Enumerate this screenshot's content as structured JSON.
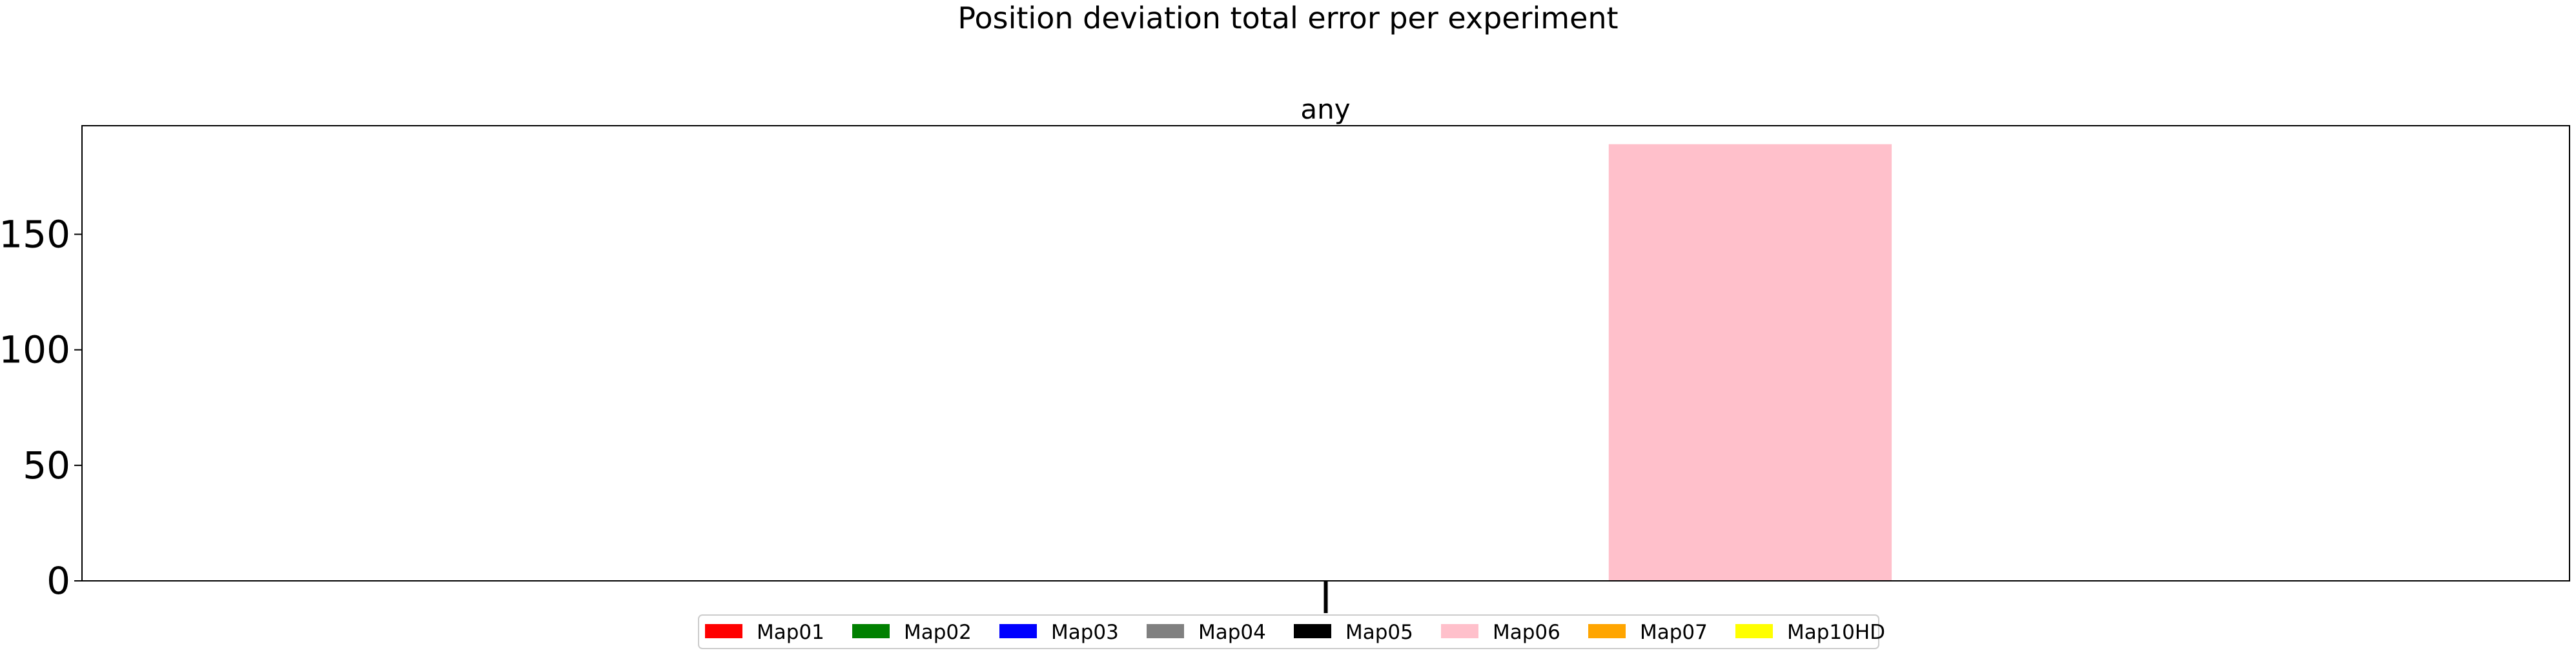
{
  "chart_data": {
    "type": "bar",
    "suptitle": "Position deviation total error per experiment",
    "title": "any",
    "xlabel": "",
    "ylabel": "",
    "categories": [
      ""
    ],
    "ylim": [
      0,
      197
    ],
    "yticks": [
      0,
      50,
      100,
      150
    ],
    "grid": false,
    "legend_position": "bottom-center",
    "series": [
      {
        "name": "Map01",
        "color": "#ff0000",
        "values": [
          0
        ]
      },
      {
        "name": "Map02",
        "color": "#008000",
        "values": [
          0
        ]
      },
      {
        "name": "Map03",
        "color": "#0000ff",
        "values": [
          0
        ]
      },
      {
        "name": "Map04",
        "color": "#808080",
        "values": [
          0
        ]
      },
      {
        "name": "Map05",
        "color": "#000000",
        "values": [
          0
        ]
      },
      {
        "name": "Map06",
        "color": "#ffc0cb",
        "values": [
          189
        ]
      },
      {
        "name": "Map07",
        "color": "#ffa500",
        "values": [
          0
        ]
      },
      {
        "name": "Map10HD",
        "color": "#ffff00",
        "values": [
          0
        ]
      }
    ]
  }
}
